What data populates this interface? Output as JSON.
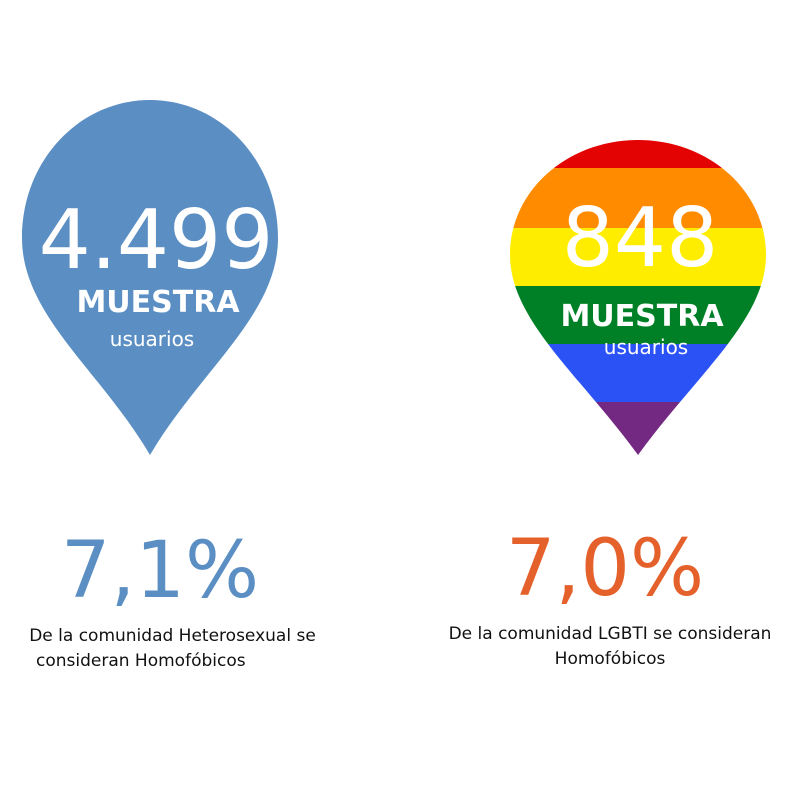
{
  "colors": {
    "hetero_pin": "#5b8fc4",
    "hetero_percent": "#5b8fc4",
    "lgbti_percent": "#e5612c",
    "pin_text": "#ffffff",
    "rainbow": [
      "#e40303",
      "#ff8c00",
      "#ffed00",
      "#008026",
      "#2a52f5",
      "#732982"
    ]
  },
  "hetero": {
    "count": "4.499",
    "sample_label": "MUESTRA",
    "unit_label": "usuarios",
    "percent": "7,1%",
    "description_line1": "De la comunidad Heterosexual se",
    "description_line2": "consideran Homofóbicos"
  },
  "lgbti": {
    "count": "848",
    "sample_label": "MUESTRA",
    "unit_label": "usuarios",
    "percent": "7,0%",
    "description_line1": "De la comunidad LGBTI se consideran",
    "description_line2": "Homofóbicos"
  }
}
